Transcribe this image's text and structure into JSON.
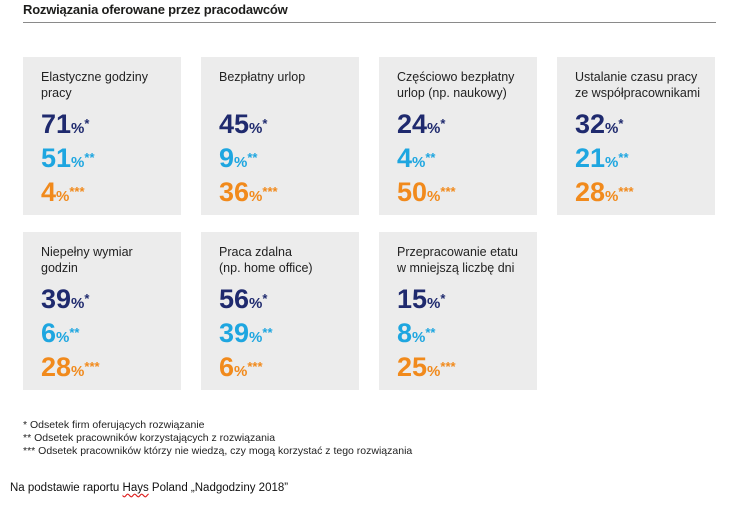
{
  "header": {
    "title": "Rozwiązania oferowane przez pracodawców"
  },
  "chart_data": {
    "type": "table",
    "title": "Rozwiązania oferowane przez pracodawców",
    "series": [
      {
        "name": "* Odsetek firm oferujących rozwiązanie",
        "values": [
          71,
          45,
          24,
          32,
          39,
          56,
          15
        ]
      },
      {
        "name": "** Odsetek pracowników korzystających z rozwiązania",
        "values": [
          51,
          9,
          4,
          21,
          6,
          39,
          8
        ]
      },
      {
        "name": "*** Odsetek pracowników którzy nie wiedzą, czy mogą korzystać z tego rozwiązania",
        "values": [
          4,
          36,
          50,
          28,
          28,
          6,
          25
        ]
      }
    ],
    "categories": [
      "Elastyczne godziny pracy",
      "Bezpłatny urlop",
      "Częściowo bezpłatny urlop (np. naukowy)",
      "Ustalanie czasu pracy ze współpracownikami",
      "Niepełny wymiar godzin",
      "Praca zdalna (np. home office)",
      "Przepracowanie etatu w mniejszą liczbę dni"
    ],
    "cards": [
      {
        "label_lines": [
          "Elastyczne godziny",
          "pracy"
        ],
        "v1": "71",
        "v2": "51",
        "v3": "4"
      },
      {
        "label_lines": [
          "Bezpłatny urlop",
          ""
        ],
        "v1": "45",
        "v2": "9",
        "v3": "36"
      },
      {
        "label_lines": [
          "Częściowo bezpłatny",
          "urlop (np. naukowy)"
        ],
        "v1": "24",
        "v2": "4",
        "v3": "50"
      },
      {
        "label_lines": [
          "Ustalanie czasu pracy",
          "ze współpracownikami"
        ],
        "v1": "32",
        "v2": "21",
        "v3": "28"
      },
      {
        "label_lines": [
          "Niepełny wymiar",
          "godzin"
        ],
        "v1": "39",
        "v2": "6",
        "v3": "28"
      },
      {
        "label_lines": [
          "Praca zdalna",
          "(np. home office)"
        ],
        "v1": "56",
        "v2": "39",
        "v3": "6"
      },
      {
        "label_lines": [
          "Przepracowanie etatu",
          "w mniejszą liczbę dni"
        ],
        "v1": "15",
        "v2": "8",
        "v3": "25"
      }
    ],
    "unit": "%",
    "markers": [
      "*",
      "**",
      "***"
    ],
    "colors": {
      "series1": "#1f2a6e",
      "series2": "#1ea6e0",
      "series3": "#f18a1c",
      "card_bg": "#ececec"
    }
  },
  "footnotes": [
    "* Odsetek firm oferujących rozwiązanie",
    "** Odsetek pracowników korzystających z rozwiązania",
    "*** Odsetek pracowników którzy nie wiedzą, czy mogą korzystać z tego rozwiązania"
  ],
  "source": {
    "before": "Na podstawie  raportu ",
    "flagged": "Hays",
    "after": " Poland  „Nadgodziny  2018”"
  }
}
